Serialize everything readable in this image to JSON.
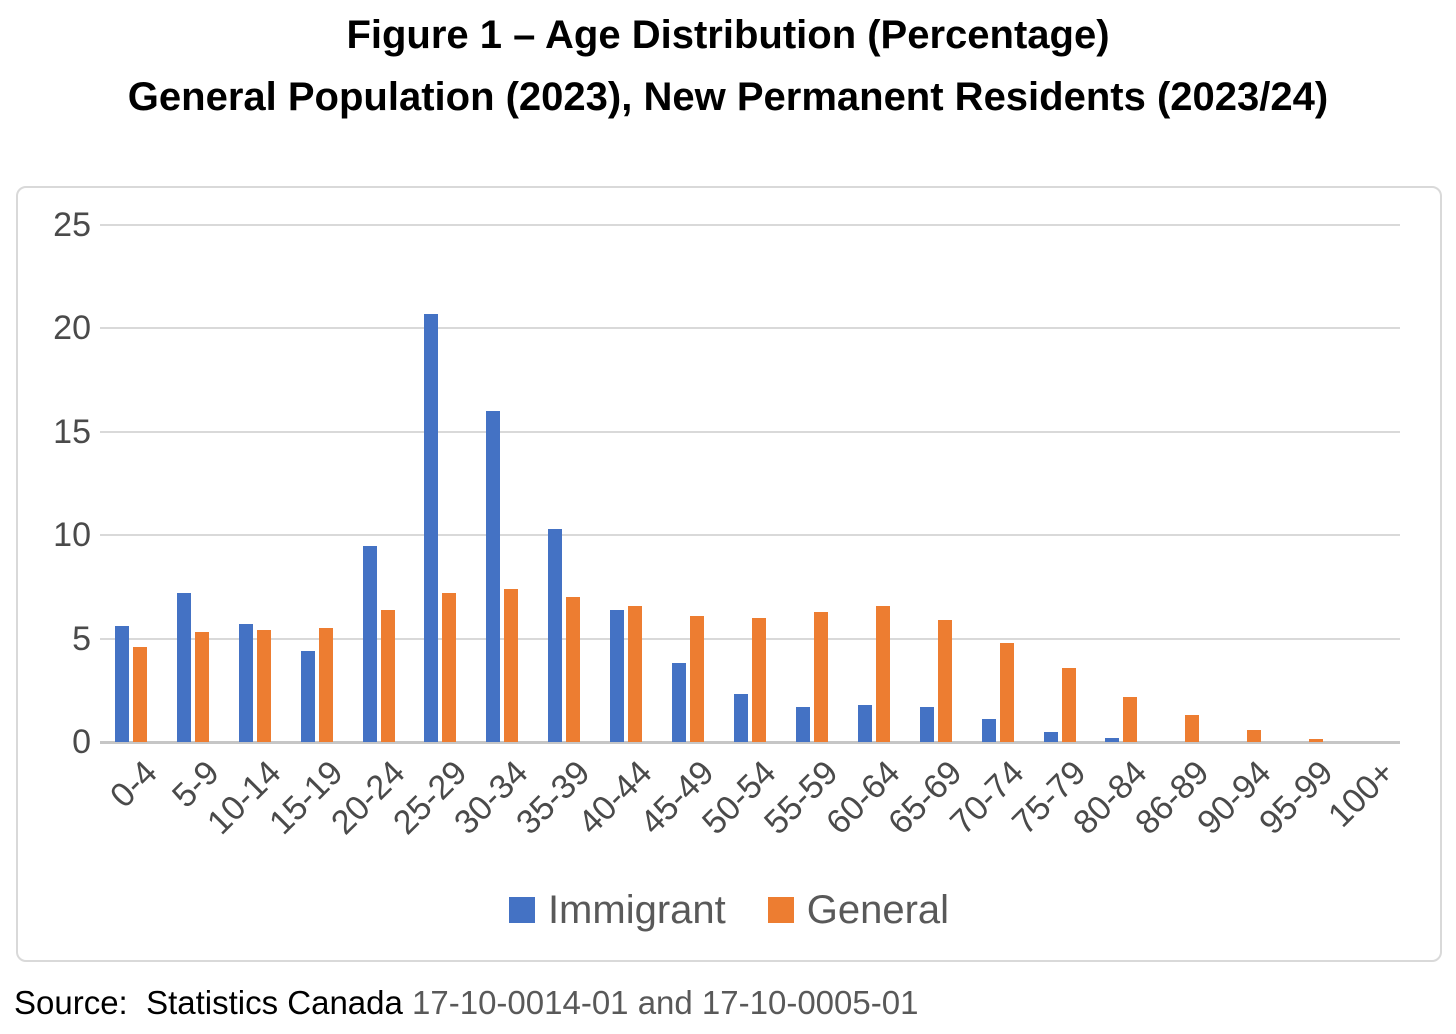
{
  "title": {
    "line1": "Figure 1 – Age Distribution (Percentage)",
    "line2": "General Population (2023), New Permanent Residents (2023/24)"
  },
  "chart_data": {
    "type": "bar",
    "title": "Figure 1 – Age Distribution (Percentage)",
    "subtitle": "General Population (2023), New Permanent Residents (2023/24)",
    "xlabel": "",
    "ylabel": "",
    "categories": [
      "0-4",
      "5-9",
      "10-14",
      "15-19",
      "20-24",
      "25-29",
      "30-34",
      "35-39",
      "40-44",
      "45-49",
      "50-54",
      "55-59",
      "60-64",
      "65-69",
      "70-74",
      "75-79",
      "80-84",
      "86-89",
      "90-94",
      "95-99",
      "100+"
    ],
    "series": [
      {
        "name": "Immigrant",
        "color": "#4472C4",
        "values": [
          5.6,
          7.2,
          5.7,
          4.4,
          9.5,
          20.7,
          16.0,
          10.3,
          6.4,
          3.8,
          2.3,
          1.7,
          1.8,
          1.7,
          1.1,
          0.5,
          0.2,
          0,
          0,
          0,
          0
        ]
      },
      {
        "name": "General",
        "color": "#ED7D31",
        "values": [
          4.6,
          5.3,
          5.4,
          5.5,
          6.4,
          7.2,
          7.4,
          7.0,
          6.6,
          6.1,
          6.0,
          6.3,
          6.6,
          5.9,
          4.8,
          3.6,
          2.2,
          1.3,
          0.6,
          0.15,
          0
        ]
      }
    ],
    "yticks": [
      0,
      5,
      10,
      15,
      20,
      25
    ],
    "ylim": [
      0,
      25
    ],
    "grid": true,
    "legend_position": "bottom"
  },
  "legend": [
    {
      "label": "Immigrant",
      "color": "#4472C4"
    },
    {
      "label": "General",
      "color": "#ED7D31"
    }
  ],
  "source": {
    "prefix": "Source:  Statistics Canada ",
    "codes": "17-10-0014-01 and 17-10-0005-01"
  },
  "colors": {
    "immigrant_blue": "#4472C4",
    "general_orange": "#ED7D31",
    "gridline": "#D9D9D9",
    "axis_line": "#C6C6C6",
    "axis_text": "#4A4A4A",
    "legend_text": "#595959",
    "frame_border": "#D9D9D9"
  }
}
